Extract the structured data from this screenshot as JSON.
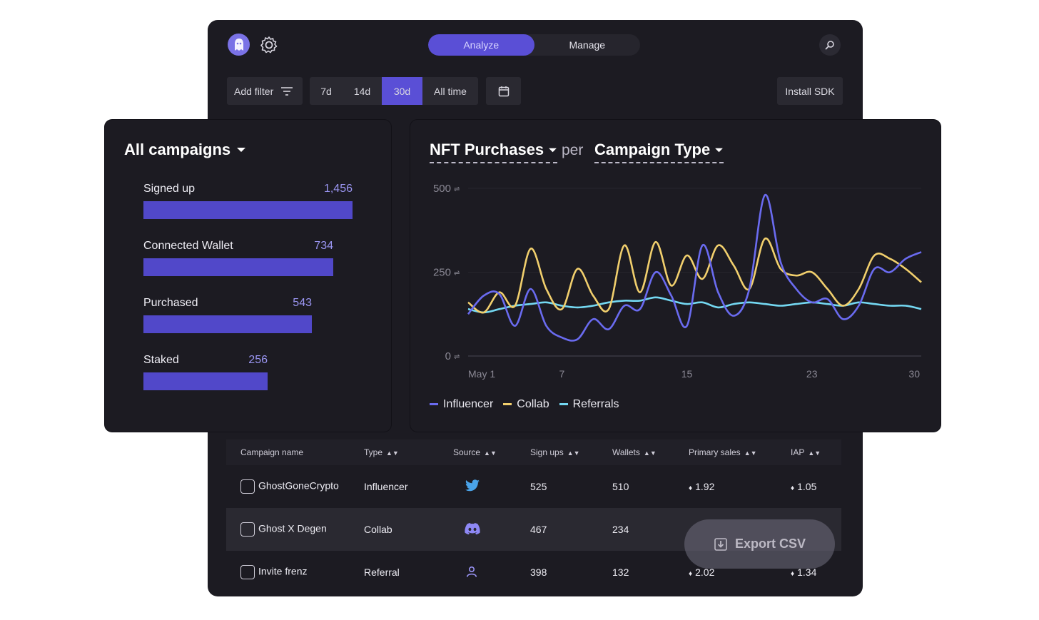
{
  "header": {
    "modes": [
      {
        "label": "Analyze",
        "active": true
      },
      {
        "label": "Manage",
        "active": false
      }
    ]
  },
  "toolbar": {
    "add_filter": "Add filter",
    "ranges": [
      {
        "label": "7d"
      },
      {
        "label": "14d"
      },
      {
        "label": "30d",
        "active": true
      },
      {
        "label": "All time"
      }
    ],
    "install_sdk": "Install SDK"
  },
  "funnel": {
    "title": "All campaigns",
    "items": [
      {
        "label": "Signed up",
        "value": "1,456",
        "count": 1456
      },
      {
        "label": "Connected Wallet",
        "value": "734",
        "count": 734
      },
      {
        "label": "Purchased",
        "value": "543",
        "count": 543
      },
      {
        "label": "Staked",
        "value": "256",
        "count": 256
      }
    ],
    "bar_color": "#5148c9"
  },
  "chart": {
    "metric": "NFT Purchases",
    "per": "per",
    "dimension": "Campaign Type"
  },
  "chart_data": {
    "type": "line",
    "x": [
      1,
      2,
      3,
      4,
      5,
      6,
      7,
      8,
      9,
      10,
      11,
      12,
      13,
      14,
      15,
      16,
      17,
      18,
      19,
      20,
      21,
      22,
      23,
      24,
      25,
      26,
      27,
      28,
      29,
      30
    ],
    "x_tick_labels": [
      "May 1",
      "7",
      "15",
      "23",
      "30"
    ],
    "x_ticks": [
      1,
      7,
      15,
      23,
      30
    ],
    "y_tick_labels": [
      "500",
      "250",
      "0"
    ],
    "y_ticks": [
      500,
      250,
      0
    ],
    "ylim": [
      0,
      500
    ],
    "grid": true,
    "series": [
      {
        "name": "Influencer",
        "color": "#6a6bf0",
        "values": [
          125,
          180,
          185,
          90,
          200,
          90,
          55,
          50,
          110,
          80,
          150,
          140,
          250,
          180,
          90,
          330,
          190,
          120,
          200,
          480,
          280,
          200,
          160,
          170,
          110,
          150,
          260,
          250,
          290,
          310
        ]
      },
      {
        "name": "Collab",
        "color": "#f1cf6d",
        "values": [
          160,
          130,
          190,
          150,
          320,
          200,
          140,
          260,
          180,
          140,
          330,
          190,
          340,
          210,
          300,
          230,
          330,
          270,
          200,
          350,
          260,
          240,
          250,
          200,
          150,
          200,
          300,
          290,
          260,
          220
        ]
      },
      {
        "name": "Referrals",
        "color": "#74d8f2",
        "values": [
          140,
          130,
          140,
          150,
          155,
          160,
          150,
          145,
          150,
          160,
          165,
          165,
          175,
          165,
          155,
          160,
          145,
          155,
          160,
          155,
          150,
          155,
          160,
          155,
          150,
          160,
          155,
          150,
          150,
          140
        ]
      }
    ]
  },
  "table": {
    "headers": [
      "Campaign name",
      "Type",
      "Source",
      "Sign ups",
      "Wallets",
      "Primary sales",
      "IAP"
    ],
    "rows": [
      {
        "name": "GhostGoneCrypto",
        "type": "Influencer",
        "source_icon": "twitter-icon",
        "signups": "525",
        "wallets": "510",
        "primary_sales": "1.92",
        "iap": "1.05"
      },
      {
        "name": "Ghost X Degen",
        "type": "Collab",
        "source_icon": "discord-icon",
        "signups": "467",
        "wallets": "234",
        "primary_sales": "",
        "iap": ""
      },
      {
        "name": "Invite frenz",
        "type": "Referral",
        "source_icon": "user-icon",
        "signups": "398",
        "wallets": "132",
        "primary_sales": "2.02",
        "iap": "1.34"
      }
    ]
  },
  "export": {
    "label": "Export CSV"
  },
  "colors": {
    "accent": "#5a4fd6",
    "background": "#1c1b22"
  }
}
